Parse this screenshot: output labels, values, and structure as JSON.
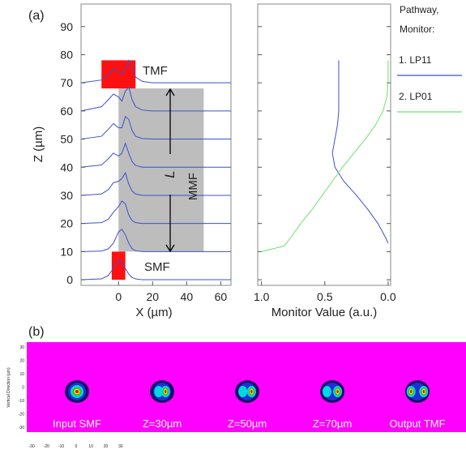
{
  "panel_labels": [
    "(a)",
    "(b)"
  ],
  "chart_data": [
    {
      "type": "profiles",
      "xlabel": "X (µm)",
      "ylabel": "Z (µm)",
      "xlim": [
        -22,
        66
      ],
      "ylim": [
        -2,
        98
      ],
      "xticks": [
        0,
        20,
        40,
        60
      ],
      "yticks": [
        0,
        10,
        20,
        30,
        40,
        50,
        60,
        70,
        80,
        90
      ],
      "color": "#3f4fd0",
      "x": [
        -22,
        -10,
        -6,
        -3,
        0,
        2,
        4,
        6,
        8,
        10,
        14,
        20,
        66
      ],
      "profiles": [
        {
          "z": 0,
          "values": [
            0,
            0.3,
            1.5,
            4,
            7,
            6,
            4,
            2,
            0.8,
            0.3,
            0,
            0,
            0
          ]
        },
        {
          "z": 10,
          "values": [
            0,
            0.2,
            1,
            3,
            7,
            8,
            6,
            3,
            1,
            0.3,
            0,
            0,
            0
          ]
        },
        {
          "z": 20,
          "values": [
            0,
            0.3,
            1.5,
            4,
            6,
            8,
            7,
            3,
            1,
            0.3,
            0,
            0,
            0
          ]
        },
        {
          "z": 30,
          "values": [
            0,
            0.5,
            2,
            4.5,
            5,
            6,
            8,
            4,
            1.5,
            0.5,
            0,
            0,
            0
          ]
        },
        {
          "z": 40,
          "values": [
            0,
            0.8,
            3,
            5,
            4,
            5,
            8.5,
            5,
            2,
            0.6,
            0,
            0,
            0
          ]
        },
        {
          "z": 50,
          "values": [
            0,
            1,
            3.5,
            5.5,
            4,
            4,
            8,
            7,
            3,
            1,
            0.2,
            0,
            0
          ]
        },
        {
          "z": 60,
          "values": [
            0,
            1.5,
            4,
            6,
            5,
            3.5,
            7,
            8.5,
            4,
            1.5,
            0.3,
            0,
            0
          ]
        },
        {
          "z": 70,
          "values": [
            0,
            1,
            3,
            5,
            4,
            3,
            5,
            8,
            6,
            2,
            0.5,
            0,
            0
          ]
        }
      ],
      "annotations": {
        "tmf": "TMF",
        "smf": "SMF",
        "mmf": "MMF",
        "length": "L"
      }
    },
    {
      "type": "line",
      "xlabel": "Monitor Value (a.u.)",
      "xlim": [
        1.03,
        -0.02
      ],
      "ylim": [
        -2,
        98
      ],
      "xticks": [
        {
          "value": 1,
          "label": "1.0"
        },
        0.5,
        {
          "value": 0,
          "label": "0.0"
        }
      ],
      "legend_title": [
        "Pathway,",
        "Monitor:"
      ],
      "series": [
        {
          "name": "1. LP11",
          "color": "#3f4fd0",
          "z": [
            13,
            15,
            20,
            25,
            30,
            35,
            40,
            45,
            50,
            55,
            60,
            65,
            70,
            75,
            78
          ],
          "values": [
            0,
            0.02,
            0.08,
            0.16,
            0.25,
            0.35,
            0.42,
            0.44,
            0.42,
            0.4,
            0.39,
            0.39,
            0.39,
            0.39,
            0.39
          ]
        },
        {
          "name": "2. LP01",
          "color": "#6fe06f",
          "z": [
            10,
            12,
            15,
            20,
            25,
            30,
            35,
            40,
            45,
            50,
            55,
            60,
            65,
            70,
            78
          ],
          "values": [
            1,
            0.82,
            0.77,
            0.69,
            0.6,
            0.52,
            0.44,
            0.36,
            0.27,
            0.18,
            0.1,
            0.04,
            0.01,
            0,
            0
          ]
        }
      ]
    },
    {
      "type": "image",
      "ylabel": "Vertical Direction (µm)",
      "xticks": [
        -30,
        -20,
        -10,
        0,
        10,
        20,
        30
      ],
      "yticks": [
        30,
        20,
        10,
        0,
        -10,
        -20,
        -30
      ],
      "labels": [
        "Input SMF",
        "Z=30µm",
        "Z=50µm",
        "Z=70µm",
        "Output TMF"
      ]
    }
  ]
}
